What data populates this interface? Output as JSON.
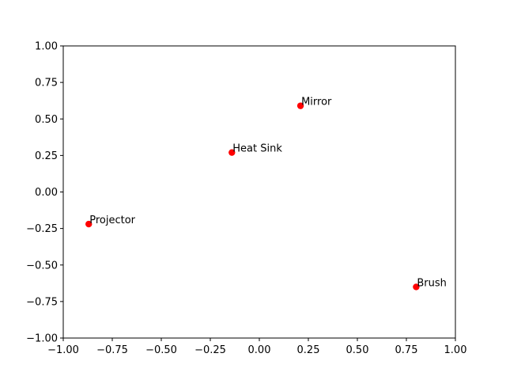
{
  "chart_data": {
    "type": "scatter",
    "title": "",
    "xlabel": "",
    "ylabel": "",
    "xlim": [
      -1.0,
      1.0
    ],
    "ylim": [
      -1.0,
      1.0
    ],
    "grid": false,
    "marker_color": "#ff0000",
    "x_ticks": [
      -1.0,
      -0.75,
      -0.5,
      -0.25,
      0.0,
      0.25,
      0.5,
      0.75,
      1.0
    ],
    "x_tick_labels": [
      "−1.00",
      "−0.75",
      "−0.50",
      "−0.25",
      "0.00",
      "0.25",
      "0.50",
      "0.75",
      "1.00"
    ],
    "y_ticks": [
      1.0,
      0.75,
      0.5,
      0.25,
      0.0,
      -0.25,
      -0.5,
      -0.75,
      -1.0
    ],
    "y_tick_labels": [
      "1.00",
      "0.75",
      "0.50",
      "0.25",
      "0.00",
      "−0.25",
      "−0.50",
      "−0.75",
      "−1.00"
    ],
    "points": [
      {
        "label": "Mirror",
        "x": 0.21,
        "y": 0.59
      },
      {
        "label": "Heat Sink",
        "x": -0.14,
        "y": 0.27
      },
      {
        "label": "Projector",
        "x": -0.87,
        "y": -0.22
      },
      {
        "label": "Brush",
        "x": 0.8,
        "y": -0.65
      }
    ]
  }
}
